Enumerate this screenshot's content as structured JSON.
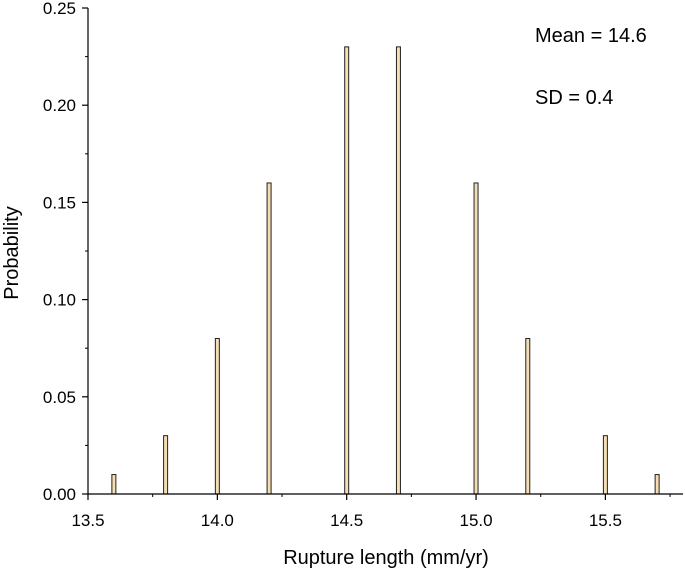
{
  "chart_data": {
    "type": "bar",
    "xlabel": "Rupture length (mm/yr)",
    "ylabel": "Probability",
    "xlim": [
      13.5,
      15.8
    ],
    "ylim": [
      0,
      0.25
    ],
    "x_ticks": [
      13.5,
      14.0,
      14.5,
      15.0,
      15.5
    ],
    "x_tick_labels": [
      "13.5",
      "14.0",
      "14.5",
      "15.0",
      "15.5"
    ],
    "y_ticks": [
      0,
      0.05,
      0.1,
      0.15,
      0.2,
      0.25
    ],
    "y_tick_labels": [
      "0.00",
      "0.05",
      "0.10",
      "0.15",
      "0.20",
      "0.25"
    ],
    "x": [
      13.6,
      13.8,
      14.0,
      14.2,
      14.5,
      14.7,
      15.0,
      15.2,
      15.5,
      15.7
    ],
    "values": [
      0.01,
      0.03,
      0.08,
      0.16,
      0.23,
      0.23,
      0.16,
      0.08,
      0.03,
      0.01
    ],
    "annotations": [
      "Mean = 14.6",
      "SD = 0.4"
    ],
    "bar_fill": "#F5DEB3",
    "bar_edge": "#222222",
    "grid": false
  }
}
